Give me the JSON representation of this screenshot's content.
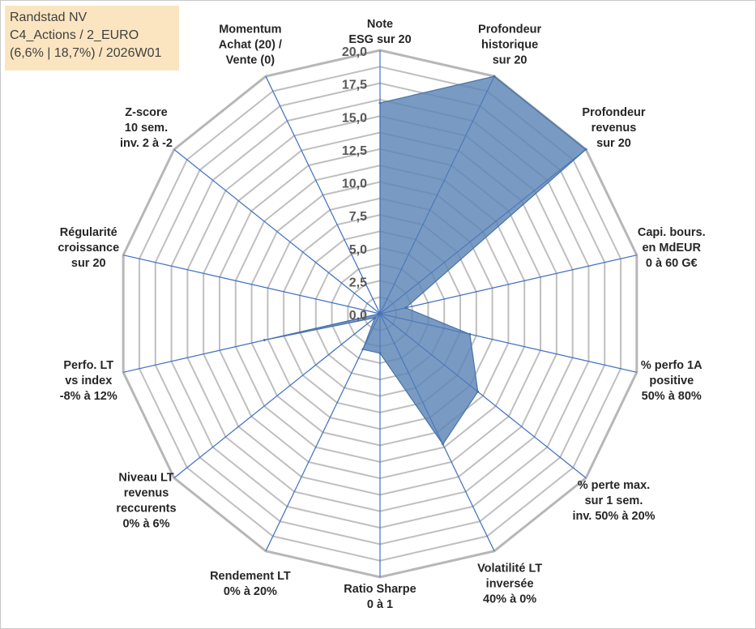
{
  "header": {
    "line1": "Randstad NV",
    "line2": "C4_Actions / 2_EURO",
    "line3": "(6,6% | 18,7%) / 2026W01"
  },
  "chart_data": {
    "type": "radar",
    "title": "Randstad NV",
    "rmin": 0,
    "rmax": 20,
    "ticks": [
      "0,0",
      "2,5",
      "5,0",
      "7,5",
      "10,0",
      "12,5",
      "15,0",
      "17,5",
      "20,0"
    ],
    "minor_rings": 16,
    "axes": [
      {
        "lines": [
          "Note",
          "ESG sur 20"
        ]
      },
      {
        "lines": [
          "Profondeur",
          "historique",
          "sur 20"
        ]
      },
      {
        "lines": [
          "Profondeur",
          "revenus",
          "sur 20"
        ]
      },
      {
        "lines": [
          "Capi. bours.",
          "en MdEUR",
          "0 à 60 G€"
        ]
      },
      {
        "lines": [
          "% perfo 1A",
          "positive",
          "50% à 80%"
        ]
      },
      {
        "lines": [
          "% perte max.",
          "sur 1 sem.",
          "inv. 50% à 20%"
        ]
      },
      {
        "lines": [
          "Volatilité LT",
          "inversée",
          "40% à 0%"
        ]
      },
      {
        "lines": [
          "Ratio Sharpe",
          "0 à 1"
        ]
      },
      {
        "lines": [
          "Rendement LT",
          "0% à 20%"
        ]
      },
      {
        "lines": [
          "Niveau LT",
          "revenus",
          "reccurents",
          "0% à 6%"
        ]
      },
      {
        "lines": [
          "Perfo. LT",
          "vs index",
          "-8% à 12%"
        ]
      },
      {
        "lines": [
          "Régularité",
          "croissance",
          "sur 20"
        ]
      },
      {
        "lines": [
          "Z-score",
          "10 sem.",
          "inv. 2 à -2"
        ]
      },
      {
        "lines": [
          "Momentum",
          "Achat (20) /",
          "Vente (0)"
        ]
      }
    ],
    "series": [
      {
        "name": "Randstad NV",
        "values": [
          16,
          20,
          20,
          2,
          7,
          9.5,
          11,
          3,
          3,
          0.5,
          9,
          0,
          0,
          0
        ],
        "fill": "#5b84b5",
        "fill_opacity": 0.82,
        "stroke": "#4a72a6"
      }
    ],
    "grid_color": "#bfbfbf",
    "spoke_color": "#4472c4"
  }
}
